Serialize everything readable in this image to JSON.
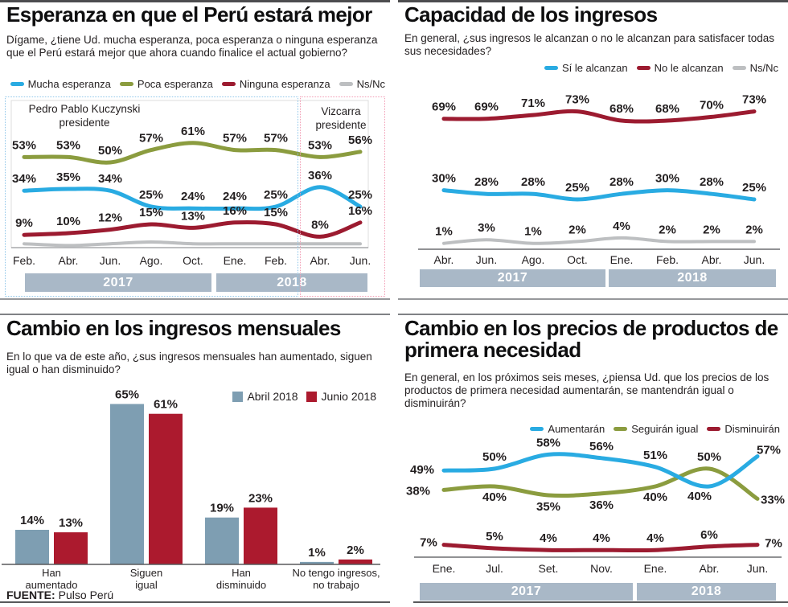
{
  "source": {
    "prefix": "FUENTE:",
    "name": "Pulso Perú"
  },
  "charts": [
    {
      "id": "esperanza",
      "title": "Esperanza en que el Perú estará mejor",
      "question": "Dígame, ¿tiene Ud. mucha esperanza, poca esperanza o ninguna esperanza que el Perú estará mejor que ahora cuando finalice el actual gobierno?",
      "chart_data": {
        "type": "line",
        "x_labels": [
          "Feb.",
          "Abr.",
          "Jun.",
          "Ago.",
          "Oct.",
          "Ene.",
          "Feb.",
          "Abr.",
          "Jun."
        ],
        "year_bands": [
          "2017",
          "2018"
        ],
        "annotations": [
          "Pedro Pablo Kuczynski\npresidente",
          "Vizcarra\npresidente"
        ],
        "legend_position": "top-right",
        "ylim": [
          0,
          75
        ],
        "grid": false,
        "series": [
          {
            "name": "Mucha esperanza",
            "color": "#29ABE2",
            "values": [
              34,
              35,
              34,
              25,
              24,
              24,
              25,
              36,
              25
            ],
            "labels_shown": true
          },
          {
            "name": "Poca esperanza",
            "color": "#8B9C3F",
            "values": [
              53,
              53,
              50,
              57,
              61,
              57,
              57,
              53,
              56
            ],
            "labels_shown": true
          },
          {
            "name": "Ninguna esperanza",
            "color": "#9C1B30",
            "values": [
              9,
              10,
              12,
              15,
              13,
              16,
              15,
              8,
              16
            ],
            "labels_shown": true
          },
          {
            "name": "Ns/Nc",
            "color": "#BDBFC1",
            "values": [
              4,
              3,
              4,
              5,
              4,
              4,
              4,
              4,
              4
            ],
            "labels_shown": false
          }
        ]
      }
    },
    {
      "id": "capacidad",
      "title": "Capacidad de los ingresos",
      "question": "En general, ¿sus ingresos le alcanzan o no le alcanzan para satisfacer todas sus necesidades?",
      "chart_data": {
        "type": "line",
        "x_labels": [
          "Abr.",
          "Jun.",
          "Ago.",
          "Oct.",
          "Ene.",
          "Feb.",
          "Abr.",
          "Jun."
        ],
        "year_bands": [
          "2017",
          "2018"
        ],
        "legend_position": "top-right",
        "ylim": [
          0,
          80
        ],
        "grid": false,
        "series": [
          {
            "name": "Sí le alcanzan",
            "color": "#29ABE2",
            "values": [
              30,
              28,
              28,
              25,
              28,
              30,
              28,
              25
            ],
            "labels_shown": true
          },
          {
            "name": "No le alcanzan",
            "color": "#9C1B30",
            "values": [
              69,
              69,
              71,
              73,
              68,
              68,
              70,
              73
            ],
            "labels_shown": true
          },
          {
            "name": "Ns/Nc",
            "color": "#BDBFC1",
            "values": [
              1,
              3,
              1,
              2,
              4,
              2,
              2,
              2
            ],
            "labels_shown": true
          }
        ]
      }
    },
    {
      "id": "ingresos",
      "title": "Cambio en los ingresos mensuales",
      "question": "En lo que va de este año, ¿sus ingresos mensuales han aumentado, siguen igual o han disminuido?",
      "chart_data": {
        "type": "bar",
        "categories": [
          [
            "Han",
            "aumentado"
          ],
          [
            "Siguen",
            "igual"
          ],
          [
            "Han",
            "disminuido"
          ],
          [
            "No tengo ingresos,",
            "no trabajo"
          ]
        ],
        "legend_position": "top-right",
        "ylim": [
          0,
          70
        ],
        "grid": false,
        "series": [
          {
            "name": "Abril 2018",
            "color": "#7E9EB2",
            "values": [
              14,
              65,
              19,
              1
            ],
            "labels_shown": true
          },
          {
            "name": "Junio 2018",
            "color": "#AC1A2E",
            "values": [
              13,
              61,
              23,
              2
            ],
            "labels_shown": true
          }
        ]
      }
    },
    {
      "id": "precios",
      "title": "Cambio en los precios de productos de primera necesidad",
      "question": "En general, en los próximos seis meses, ¿piensa Ud. que los precios de los productos de primera necesidad aumentarán, se mantendrán igual o disminuirán?",
      "chart_data": {
        "type": "line",
        "x_labels": [
          "Ene.",
          "Jul.",
          "Set.",
          "Nov.",
          "Ene.",
          "Abr.",
          "Jun."
        ],
        "year_bands": [
          "2017",
          "2018"
        ],
        "legend_position": "top-right",
        "ylim": [
          0,
          65
        ],
        "grid": false,
        "series": [
          {
            "name": "Aumentarán",
            "color": "#29ABE2",
            "values": [
              49,
              50,
              58,
              56,
              51,
              40,
              57
            ],
            "labels_shown": true
          },
          {
            "name": "Seguirán igual",
            "color": "#8B9C3F",
            "values": [
              38,
              40,
              35,
              36,
              40,
              50,
              33
            ],
            "labels_shown": true
          },
          {
            "name": "Disminuirán",
            "color": "#9C1B30",
            "values": [
              7,
              5,
              4,
              4,
              4,
              6,
              7
            ],
            "labels_shown": true
          }
        ]
      }
    }
  ]
}
